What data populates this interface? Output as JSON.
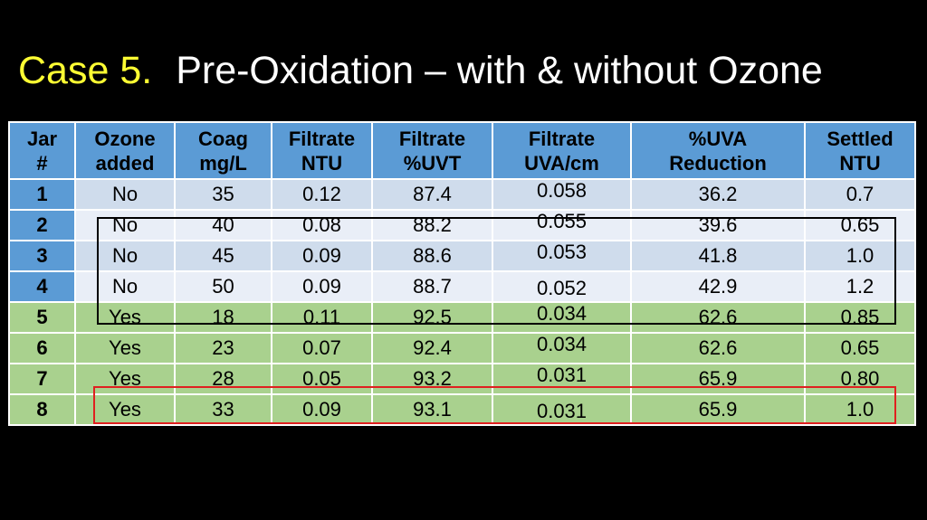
{
  "title": {
    "case": "Case 5.",
    "main": "Pre-Oxidation – with & without Ozone"
  },
  "colors": {
    "header": "#5b9bd5",
    "no_rows_light": "#cfdcec",
    "no_rows_lighter": "#e9eef7",
    "yes_rows": "#a9d18e",
    "title_accent": "#ffff33",
    "red_box": "#e02020"
  },
  "table": {
    "headers": [
      [
        "Jar",
        "#"
      ],
      [
        "Ozone",
        "added"
      ],
      [
        "Coag",
        "mg/L"
      ],
      [
        "Filtrate",
        "NTU"
      ],
      [
        "Filtrate",
        "%UVT"
      ],
      [
        "Filtrate",
        "UVA/cm"
      ],
      [
        "%UVA",
        "Reduction"
      ],
      [
        "Settled",
        "NTU"
      ]
    ],
    "rows": [
      [
        "1",
        "No",
        "35",
        "0.12",
        "87.4",
        "0.058",
        "36.2",
        "0.7"
      ],
      [
        "2",
        "No",
        "40",
        "0.08",
        "88.2",
        "0.055",
        "39.6",
        "0.65"
      ],
      [
        "3",
        "No",
        "45",
        "0.09",
        "88.6",
        "0.053",
        "41.8",
        "1.0"
      ],
      [
        "4",
        "No",
        "50",
        "0.09",
        "88.7",
        "0.052",
        "42.9",
        "1.2"
      ],
      [
        "5",
        "Yes",
        "18",
        "0.11",
        "92.5",
        "0.034",
        "62.6",
        "0.85"
      ],
      [
        "6",
        "Yes",
        "23",
        "0.07",
        "92.4",
        "0.034",
        "62.6",
        "0.65"
      ],
      [
        "7",
        "Yes",
        "28",
        "0.05",
        "93.2",
        "0.031",
        "65.9",
        "0.80"
      ],
      [
        "8",
        "Yes",
        "33",
        "0.09",
        "93.1",
        "0.031",
        "65.9",
        "1.0"
      ]
    ]
  }
}
